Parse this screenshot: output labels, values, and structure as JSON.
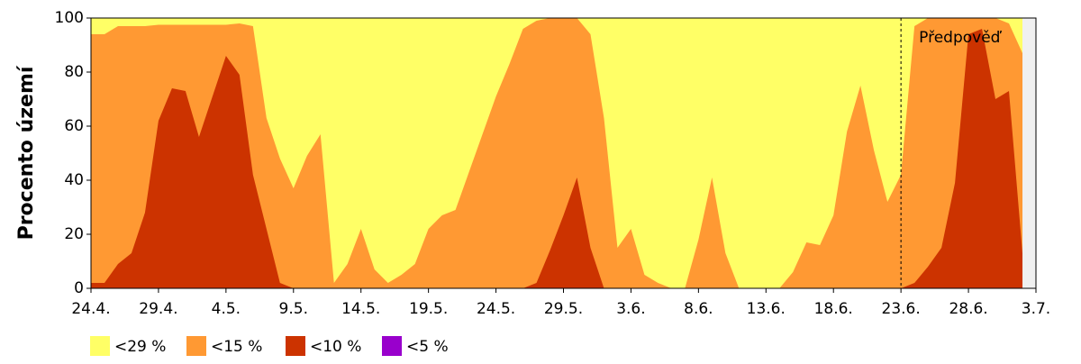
{
  "chart_data": {
    "type": "area",
    "y_label": "Procento území",
    "categories": [
      "24.4.",
      null,
      null,
      null,
      null,
      "29.4.",
      null,
      null,
      null,
      null,
      "4.5.",
      null,
      null,
      null,
      null,
      "9.5.",
      null,
      null,
      null,
      null,
      "14.5.",
      null,
      null,
      null,
      null,
      "19.5.",
      null,
      null,
      null,
      null,
      "24.5.",
      null,
      null,
      null,
      null,
      "29.5.",
      null,
      null,
      null,
      null,
      "3.6.",
      null,
      null,
      null,
      null,
      "8.6.",
      null,
      null,
      null,
      null,
      "13.6.",
      null,
      null,
      null,
      null,
      "18.6.",
      null,
      null,
      null,
      null,
      "23.6.",
      null,
      null,
      null,
      null,
      "28.6.",
      null,
      null,
      null,
      null,
      "3.7."
    ],
    "series": [
      {
        "name": "<29 %",
        "color": "#ffff66",
        "values": [
          100,
          100,
          100,
          100,
          100,
          100,
          100,
          100,
          100,
          100,
          100,
          100,
          100,
          100,
          100,
          100,
          100,
          100,
          100,
          100,
          100,
          100,
          100,
          100,
          100,
          100,
          100,
          100,
          100,
          100,
          100,
          100,
          100,
          100,
          100,
          100,
          100,
          100,
          100,
          100,
          100,
          100,
          100,
          100,
          100,
          100,
          100,
          100,
          100,
          100,
          100,
          100,
          100,
          100,
          100,
          100,
          100,
          100,
          100,
          100,
          100,
          100,
          100,
          100,
          100,
          100,
          100,
          100,
          100,
          100,
          null
        ]
      },
      {
        "name": "<15 %",
        "color": "#ff9933",
        "values": [
          94,
          94,
          97,
          97,
          97,
          97.5,
          97.5,
          97.5,
          97.5,
          97.5,
          97.5,
          98,
          97,
          63,
          48,
          37,
          49,
          57,
          2,
          9,
          22,
          7,
          2,
          5,
          9,
          22,
          27,
          29,
          43,
          57,
          71,
          83,
          96,
          99,
          100,
          100,
          100,
          94,
          63,
          15,
          22,
          5,
          2,
          0,
          0,
          18,
          41,
          13,
          0,
          0,
          0,
          0,
          6,
          17,
          16,
          27,
          58,
          75,
          51,
          32,
          42,
          97,
          100,
          100,
          100,
          100,
          100,
          100,
          98,
          87,
          null
        ]
      },
      {
        "name": "<10 %",
        "color": "#cc3300",
        "values": [
          2,
          2,
          9,
          13,
          28,
          62,
          74,
          73,
          56,
          71,
          86,
          79,
          42,
          22,
          2,
          0,
          0,
          0,
          0,
          0,
          0,
          0,
          0,
          0,
          0,
          0,
          0,
          0,
          0,
          0,
          0,
          0,
          0,
          2,
          14,
          27,
          41,
          15,
          0,
          0,
          0,
          0,
          0,
          0,
          0,
          0,
          0,
          0,
          0,
          0,
          0,
          0,
          0,
          0,
          0,
          0,
          0,
          0,
          0,
          0,
          0,
          2,
          8,
          15,
          39,
          94,
          96,
          70,
          73,
          13,
          null
        ]
      },
      {
        "name": "<5 %",
        "color": "#9900cc",
        "values": [
          0,
          0,
          0,
          0,
          0,
          0,
          0,
          0,
          0,
          0,
          0,
          0,
          0,
          0,
          0,
          0,
          0,
          0,
          0,
          0,
          0,
          0,
          0,
          0,
          0,
          0,
          0,
          0,
          0,
          0,
          0,
          0,
          0,
          0,
          0,
          0,
          0,
          0,
          0,
          0,
          0,
          0,
          0,
          0,
          0,
          0,
          0,
          0,
          0,
          0,
          0,
          0,
          0,
          0,
          0,
          0,
          0,
          0,
          0,
          0,
          0,
          0,
          0,
          0,
          0,
          0,
          0,
          0,
          0,
          0,
          null
        ]
      }
    ],
    "ylim": [
      0,
      100
    ],
    "yticks": [
      0,
      20,
      40,
      60,
      80,
      100
    ],
    "annotation": {
      "text": "Předpověď",
      "at": "23.6."
    },
    "plot_background": "#f0f0f0"
  }
}
